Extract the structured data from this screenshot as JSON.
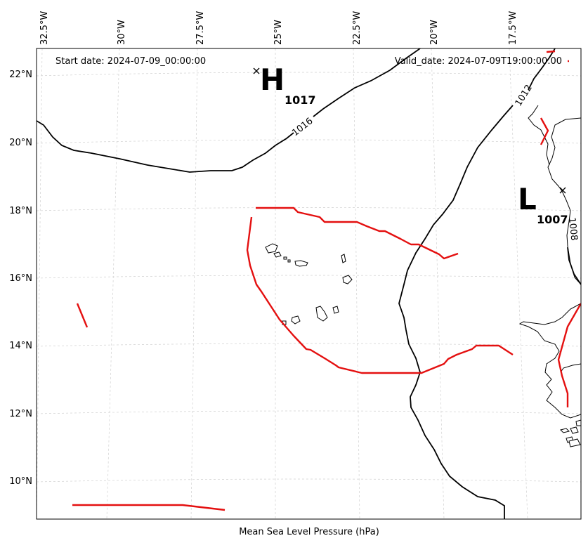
{
  "header": {
    "start_date": "Start date: 2024-07-09_00:00:00",
    "valid_date": "Valid_date: 2024-07-09T19:00:00.00"
  },
  "caption": "Mean Sea Level Pressure (hPa)",
  "lon_ticks": [
    "32.5°W",
    "30°W",
    "27.5°W",
    "25°W",
    "22.5°W",
    "20°W",
    "17.5°W"
  ],
  "lat_ticks": [
    "22°N",
    "20°N",
    "18°N",
    "16°N",
    "14°N",
    "12°N",
    "10°N"
  ],
  "pressure_centers": [
    {
      "type": "H",
      "value": "1017"
    },
    {
      "type": "L",
      "value": "1007"
    }
  ],
  "isobar_labels": [
    "1016",
    "1012",
    "1008"
  ],
  "colors": {
    "isobar": "#000000",
    "front": "#e41010",
    "grid": "#d0d0d0",
    "coastline": "#000000"
  }
}
